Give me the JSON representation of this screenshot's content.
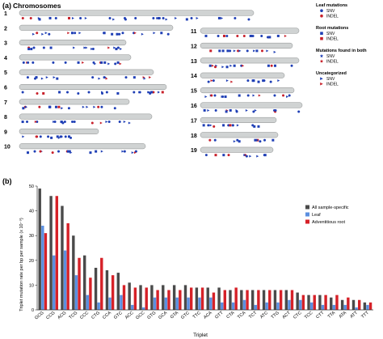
{
  "panel_a": {
    "label": "(a)",
    "title": "Chromosomes",
    "chromosomes": [
      "1",
      "2",
      "3",
      "4",
      "5",
      "6",
      "7",
      "8",
      "9",
      "10",
      "11",
      "12",
      "13",
      "14",
      "15",
      "16",
      "17",
      "18",
      "19"
    ],
    "chromosome_fill": "#d0d3d3",
    "legend": {
      "groups": [
        {
          "title": "Leaf mutations",
          "items": [
            {
              "label": "SNV",
              "marker": "circle",
              "color": "#1f3fb5"
            },
            {
              "label": "INDEL",
              "marker": "circle",
              "color": "#c8202a"
            }
          ]
        },
        {
          "title": "Root mutations",
          "items": [
            {
              "label": "SNV",
              "marker": "square",
              "color": "#1f3fb5"
            },
            {
              "label": "INDEL",
              "marker": "square",
              "color": "#c8202a"
            }
          ]
        },
        {
          "title": "Mutations found in both",
          "items": [
            {
              "label": "SNV",
              "marker": "star",
              "color": "#1f3fb5"
            },
            {
              "label": "INDEL",
              "marker": "star",
              "color": "#c8202a"
            }
          ]
        },
        {
          "title": "Uncategorized",
          "items": [
            {
              "label": "SNV",
              "marker": "triangle",
              "color": "#1f3fb5"
            },
            {
              "label": "INDEL",
              "marker": "triangle",
              "color": "#c8202a"
            }
          ]
        }
      ]
    }
  },
  "chart_data": {
    "type": "bar",
    "panel_label": "(b)",
    "xlabel": "Triplet",
    "ylabel": "Triplet mutation rate per bp per sample (x 10⁻⁹)",
    "ylim": [
      0,
      50
    ],
    "yticks": [
      0,
      10,
      20,
      30,
      40,
      50
    ],
    "grid": false,
    "legend_position": "top-right",
    "categories": [
      "GCG",
      "CCG",
      "ACG",
      "TCG",
      "CCC",
      "CTG",
      "CCA",
      "GTC",
      "ACC",
      "GCC",
      "GTG",
      "GCA",
      "GTA",
      "GTC",
      "TTC",
      "ACA",
      "GTT",
      "CTA",
      "TCA",
      "TCT",
      "ATC",
      "TTG",
      "ACT",
      "CTC",
      "TCC",
      "CTT",
      "TTA",
      "ATA",
      "ATT",
      "TTT"
    ],
    "series": [
      {
        "name": "All sample-specific",
        "color": "#4a4a4a",
        "values": [
          49,
          46,
          42,
          30,
          22,
          17,
          16,
          15,
          11,
          10,
          10,
          10,
          10,
          10,
          9,
          9,
          9,
          8,
          8,
          8,
          8,
          8,
          8,
          7,
          6,
          6,
          5,
          4,
          4,
          3
        ]
      },
      {
        "name": "Leaf",
        "color": "#5b8fe0",
        "values": [
          34,
          22,
          24,
          14,
          6,
          3,
          5,
          6,
          2,
          1,
          5,
          5,
          5,
          5,
          5,
          5,
          3,
          3,
          4,
          2,
          3,
          3,
          4,
          4,
          3,
          2,
          2,
          2,
          1,
          2
        ]
      },
      {
        "name": "Adventitious root",
        "color": "#d62128",
        "values": [
          31,
          46,
          35,
          21,
          13,
          21,
          14,
          10,
          9,
          9,
          8,
          8,
          8,
          9,
          9,
          7,
          8,
          9,
          8,
          8,
          8,
          8,
          8,
          6,
          6,
          6,
          6,
          5,
          4,
          3
        ]
      }
    ]
  }
}
